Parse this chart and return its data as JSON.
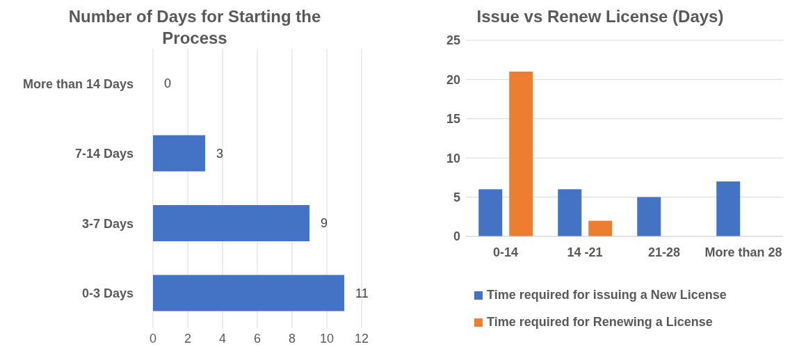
{
  "chart_data": [
    {
      "type": "bar",
      "title": "Number of Days for Starting the Process",
      "orientation": "horizontal",
      "categories": [
        "More than 14 Days",
        "7-14 Days",
        "3-7 Days",
        "0-3 Days"
      ],
      "values": [
        0,
        3,
        9,
        11
      ],
      "color": "#4472c4",
      "xlim": [
        0,
        12
      ],
      "xticks": [
        0,
        2,
        4,
        6,
        8,
        10,
        12
      ],
      "grid": "x",
      "data_labels": true
    },
    {
      "type": "bar",
      "title": "Issue vs Renew License (Days)",
      "categories": [
        "0-14",
        "14 -21",
        "21-28",
        "More than 28"
      ],
      "series": [
        {
          "name": "Time required for issuing a New License",
          "color": "#4472c4",
          "values": [
            6,
            6,
            5,
            7
          ]
        },
        {
          "name": "Time required for Renewing a License",
          "color": "#ed7d31",
          "values": [
            21,
            2,
            0,
            0
          ]
        }
      ],
      "ylim": [
        0,
        25
      ],
      "yticks": [
        0,
        5,
        10,
        15,
        20,
        25
      ],
      "grid": "y",
      "legend": "bottom"
    }
  ]
}
